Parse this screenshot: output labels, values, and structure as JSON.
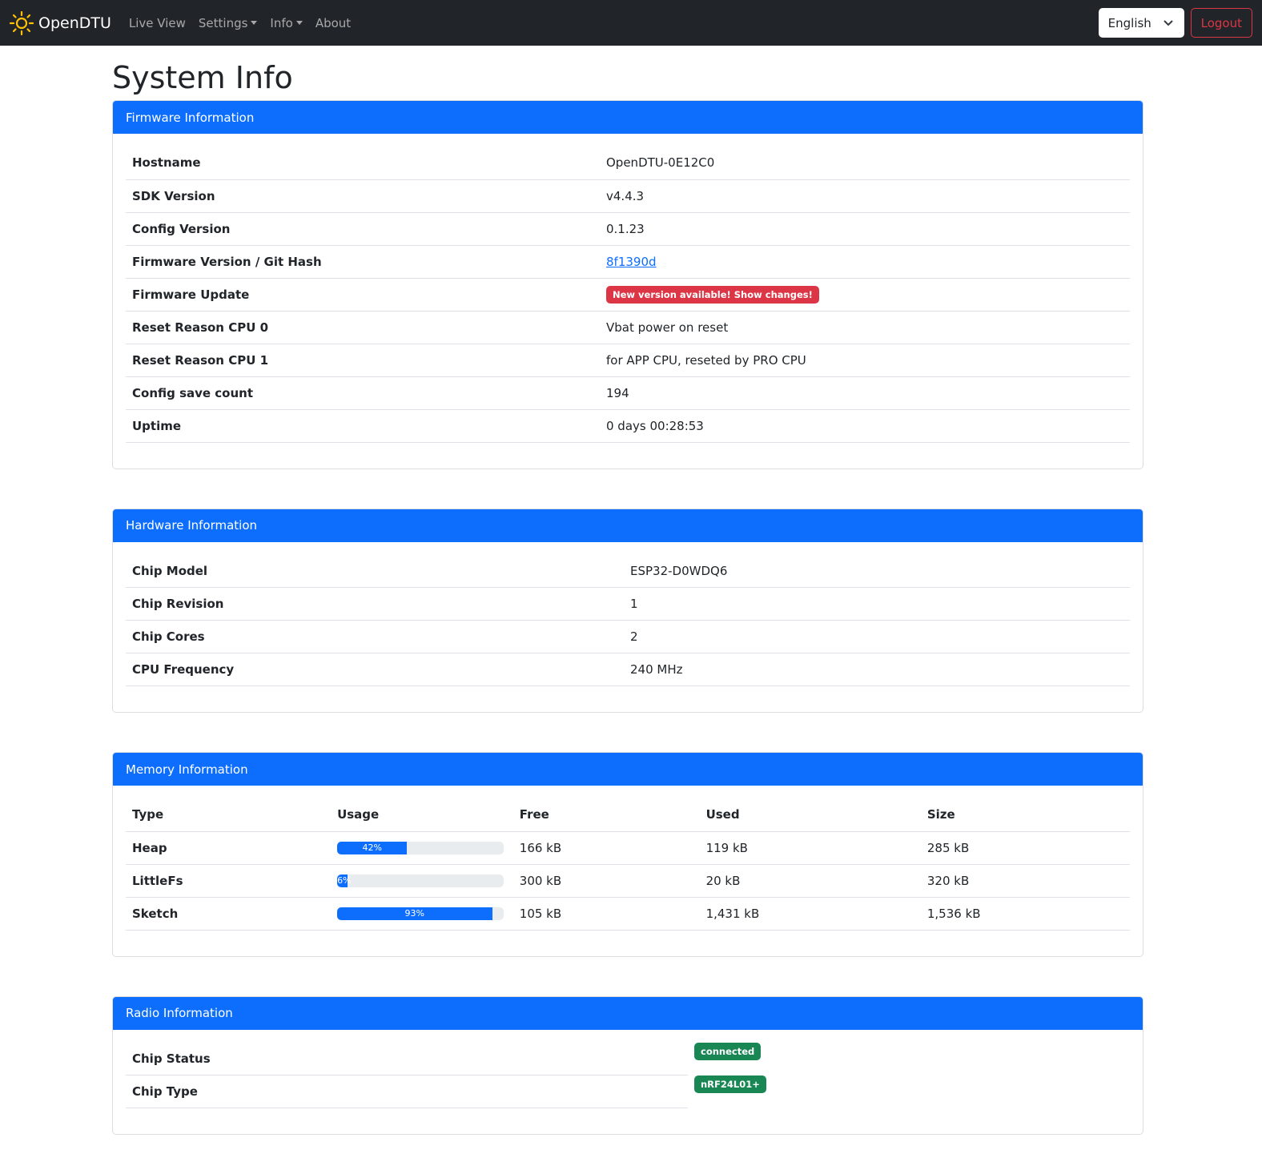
{
  "nav": {
    "brand": "OpenDTU",
    "items": [
      "Live View",
      "Settings",
      "Info",
      "About"
    ],
    "language": "English",
    "logout": "Logout"
  },
  "page_title": "System Info",
  "firmware": {
    "title": "Firmware Information",
    "rows": [
      {
        "label": "Hostname",
        "value": "OpenDTU-0E12C0"
      },
      {
        "label": "SDK Version",
        "value": "v4.4.3"
      },
      {
        "label": "Config Version",
        "value": "0.1.23"
      },
      {
        "label": "Firmware Version / Git Hash",
        "value": "8f1390d"
      },
      {
        "label": "Firmware Update",
        "value": "New version available! Show changes!"
      },
      {
        "label": "Reset Reason CPU 0",
        "value": "Vbat power on reset"
      },
      {
        "label": "Reset Reason CPU 1",
        "value": "for APP CPU, reseted by PRO CPU"
      },
      {
        "label": "Config save count",
        "value": "194"
      },
      {
        "label": "Uptime",
        "value": "0 days 00:28:53"
      }
    ]
  },
  "hardware": {
    "title": "Hardware Information",
    "rows": [
      {
        "label": "Chip Model",
        "value": "ESP32-D0WDQ6"
      },
      {
        "label": "Chip Revision",
        "value": "1"
      },
      {
        "label": "Chip Cores",
        "value": "2"
      },
      {
        "label": "CPU Frequency",
        "value": "240 MHz"
      }
    ]
  },
  "memory": {
    "title": "Memory Information",
    "headers": [
      "Type",
      "Usage",
      "Free",
      "Used",
      "Size"
    ],
    "rows": [
      {
        "type": "Heap",
        "usage": 42,
        "usage_label": "42%",
        "free": "166 kB",
        "used": "119 kB",
        "size": "285 kB"
      },
      {
        "type": "LittleFs",
        "usage": 6,
        "usage_label": "6%",
        "free": "300 kB",
        "used": "20 kB",
        "size": "320 kB"
      },
      {
        "type": "Sketch",
        "usage": 93,
        "usage_label": "93%",
        "free": "105 kB",
        "used": "1,431 kB",
        "size": "1,536 kB"
      }
    ]
  },
  "radio": {
    "title": "Radio Information",
    "rows": [
      {
        "label": "Chip Status",
        "value": "connected"
      },
      {
        "label": "Chip Type",
        "value": "nRF24L01+"
      }
    ]
  },
  "colors": {
    "primary": "#0d6efd",
    "danger": "#dc3545",
    "success": "#198754",
    "navbar": "#212529"
  }
}
